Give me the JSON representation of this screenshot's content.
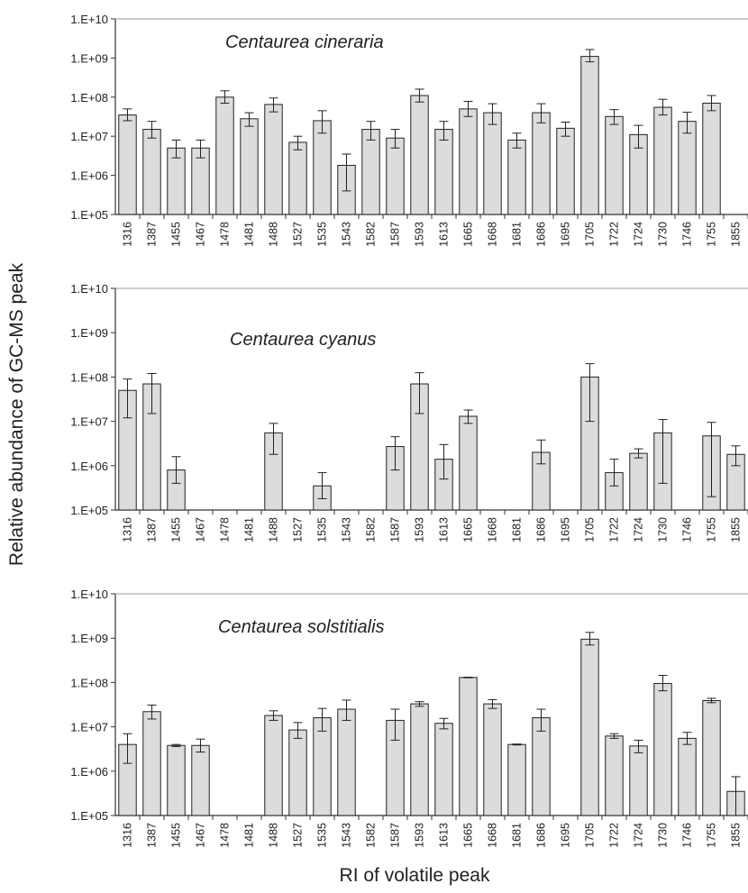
{
  "figure": {
    "ylabel": "Relative abundance of GC-MS peak",
    "xlabel": "RI of volatile peak"
  },
  "chart_data": [
    {
      "type": "bar",
      "title": "Centaurea cineraria",
      "yscale": "log",
      "ylim": [
        100000,
        10000000000
      ],
      "yticks": [
        "1.E+05",
        "1.E+06",
        "1.E+07",
        "1.E+08",
        "1.E+09",
        "1.E+10"
      ],
      "categories": [
        "1316",
        "1387",
        "1455",
        "1467",
        "1478",
        "1481",
        "1488",
        "1527",
        "1535",
        "1543",
        "1582",
        "1587",
        "1593",
        "1613",
        "1665",
        "1668",
        "1681",
        "1686",
        "1695",
        "1705",
        "1722",
        "1724",
        "1730",
        "1746",
        "1755",
        "1855"
      ],
      "values": [
        35000000,
        15000000,
        5000000,
        5000000,
        100000000,
        28000000,
        65000000,
        7000000,
        25000000,
        1800000,
        15000000,
        9000000,
        110000000,
        15000000,
        50000000,
        40000000,
        8000000,
        40000000,
        16000000,
        1100000000,
        32000000,
        11000000,
        55000000,
        24000000,
        70000000,
        null
      ],
      "error_low": [
        25000000,
        9000000,
        2800000,
        2800000,
        70000000,
        18000000,
        42000000,
        4500000,
        12000000,
        400000,
        8000000,
        5000000,
        75000000,
        8000000,
        32000000,
        20000000,
        5000000,
        22000000,
        10000000,
        800000000,
        20000000,
        5000000,
        35000000,
        12000000,
        45000000,
        null
      ],
      "error_high": [
        50000000,
        24000000,
        8000000,
        8000000,
        145000000,
        40000000,
        95000000,
        10000000,
        45000000,
        3500000,
        24000000,
        15000000,
        160000000,
        24000000,
        78000000,
        68000000,
        12000000,
        68000000,
        23000000,
        1650000000,
        48000000,
        19000000,
        88000000,
        41000000,
        110000000,
        null
      ]
    },
    {
      "type": "bar",
      "title": "Centaurea cyanus",
      "yscale": "log",
      "ylim": [
        100000,
        10000000000
      ],
      "yticks": [
        "1.E+05",
        "1.E+06",
        "1.E+07",
        "1.E+08",
        "1.E+09",
        "1.E+10"
      ],
      "categories": [
        "1316",
        "1387",
        "1455",
        "1467",
        "1478",
        "1481",
        "1488",
        "1527",
        "1535",
        "1543",
        "1582",
        "1587",
        "1593",
        "1613",
        "1665",
        "1668",
        "1681",
        "1686",
        "1695",
        "1705",
        "1722",
        "1724",
        "1730",
        "1746",
        "1755",
        "1855"
      ],
      "values": [
        50000000,
        70000000,
        800000,
        null,
        null,
        null,
        5500000,
        null,
        350000,
        null,
        null,
        2700000,
        70000000,
        1400000,
        13000000,
        null,
        null,
        2000000,
        null,
        100000000,
        700000,
        1900000,
        5500000,
        null,
        4700000,
        1800000
      ],
      "error_low": [
        12000000,
        15000000,
        400000,
        null,
        null,
        null,
        1800000,
        null,
        180000,
        null,
        null,
        800000,
        15000000,
        500000,
        9000000,
        null,
        null,
        1100000,
        null,
        10000000,
        350000,
        1500000,
        400000,
        null,
        200000,
        1000000
      ],
      "error_high": [
        90000000,
        120000000,
        1600000,
        null,
        null,
        null,
        9000000,
        null,
        700000,
        null,
        null,
        4500000,
        125000000,
        3000000,
        18000000,
        null,
        null,
        3800000,
        null,
        200000000,
        1400000,
        2400000,
        11000000,
        null,
        9500000,
        2800000
      ]
    },
    {
      "type": "bar",
      "title": "Centaurea solstitialis",
      "yscale": "log",
      "ylim": [
        100000,
        10000000000
      ],
      "yticks": [
        "1.E+05",
        "1.E+06",
        "1.E+07",
        "1.E+08",
        "1.E+09",
        "1.E+10"
      ],
      "categories": [
        "1316",
        "1387",
        "1455",
        "1467",
        "1478",
        "1481",
        "1488",
        "1527",
        "1535",
        "1543",
        "1582",
        "1587",
        "1593",
        "1613",
        "1665",
        "1668",
        "1681",
        "1686",
        "1695",
        "1705",
        "1722",
        "1724",
        "1730",
        "1746",
        "1755",
        "1855"
      ],
      "values": [
        4000000,
        22000000,
        3800000,
        3800000,
        null,
        null,
        18000000,
        8500000,
        16000000,
        25000000,
        null,
        14000000,
        33000000,
        12000000,
        130000000,
        33000000,
        4000000,
        16000000,
        null,
        950000000,
        6200000,
        3700000,
        95000000,
        5500000,
        39000000,
        350000
      ],
      "error_low": [
        1500000,
        15000000,
        3600000,
        2700000,
        null,
        null,
        14000000,
        5500000,
        8000000,
        14000000,
        null,
        5000000,
        29000000,
        9000000,
        128000000,
        26000000,
        3900000,
        8000000,
        null,
        700000000,
        5500000,
        2600000,
        65000000,
        4000000,
        35000000,
        100000
      ],
      "error_high": [
        7000000,
        31000000,
        4000000,
        5300000,
        null,
        null,
        23000000,
        12500000,
        26000000,
        40000000,
        null,
        25000000,
        37000000,
        15500000,
        132000000,
        41000000,
        4100000,
        25000000,
        null,
        1350000000,
        7000000,
        5000000,
        145000000,
        7500000,
        44000000,
        750000
      ]
    }
  ]
}
